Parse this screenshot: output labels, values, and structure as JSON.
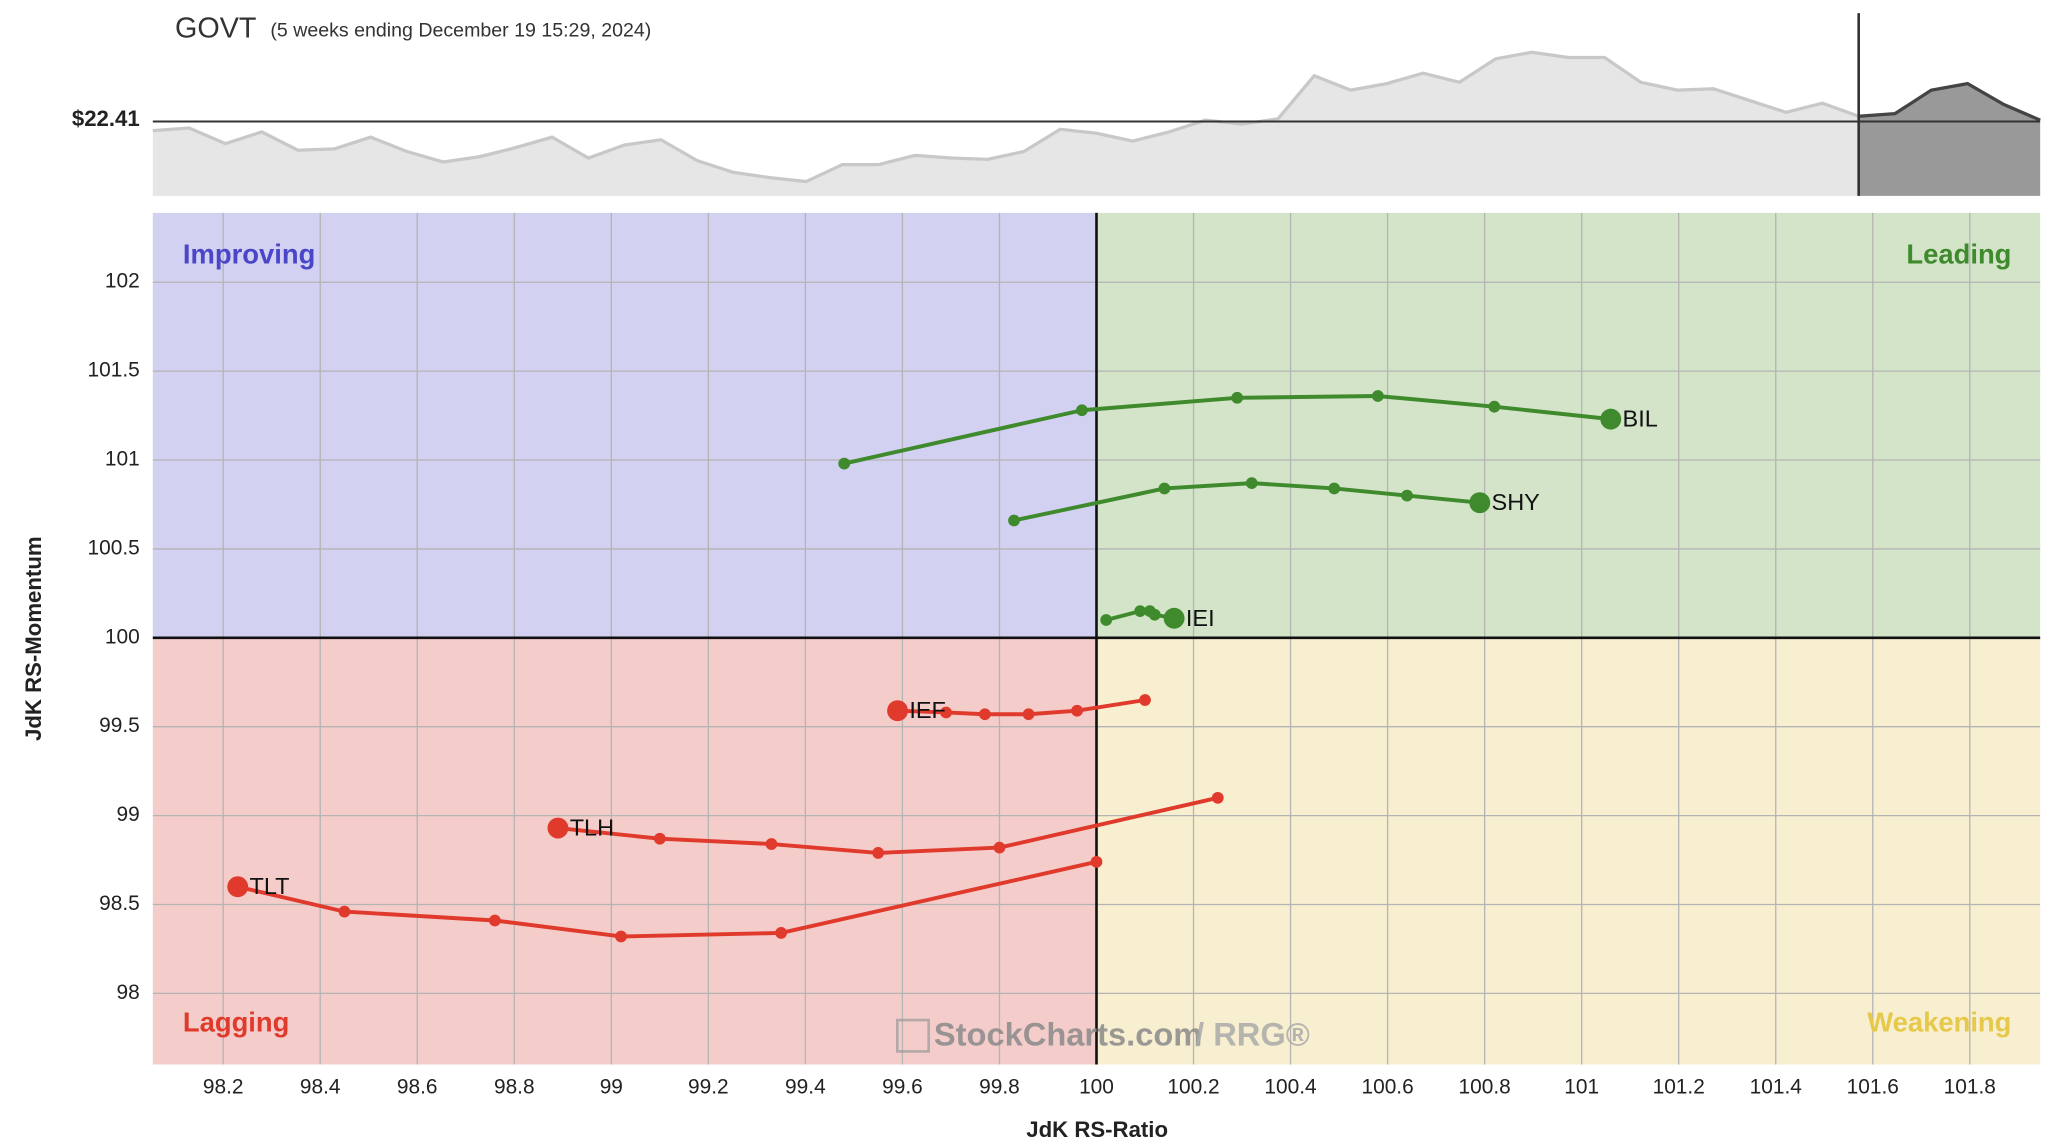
{
  "chart_data": [
    {
      "type": "area",
      "title": "GOVT",
      "subtitle": "(5 weeks ending December 19 15:29, 2024)",
      "reference": {
        "value": 22.41,
        "label": "$22.41"
      },
      "ylim": [
        21.84,
        23.24
      ],
      "series": [
        {
          "color": "#e6e6e6",
          "values": [
            22.34,
            22.36,
            22.24,
            22.33,
            22.19,
            22.2,
            22.29,
            22.18,
            22.1,
            22.14,
            22.21,
            22.29,
            22.13,
            22.23,
            22.27,
            22.11,
            22.02,
            21.98,
            21.95,
            22.08,
            22.08,
            22.15,
            22.13,
            22.12,
            22.18,
            22.35,
            22.32,
            22.26,
            22.33,
            22.42,
            22.39,
            22.43,
            22.76,
            22.65,
            22.7,
            22.78,
            22.71,
            22.89,
            22.94,
            22.9,
            22.9,
            22.71,
            22.65,
            22.66,
            22.57,
            22.48,
            22.55,
            22.45
          ]
        },
        {
          "color": "#999999",
          "values": [
            22.45,
            22.47,
            22.65,
            22.7,
            22.54,
            22.42
          ]
        }
      ]
    },
    {
      "type": "scatter",
      "xlabel": "JdK RS-Ratio",
      "ylabel": "JdK RS-Momentum",
      "xlim": [
        98.055,
        101.945
      ],
      "ylim": [
        97.6,
        102.39
      ],
      "center": [
        100,
        100
      ],
      "grid": true,
      "xticks": [
        98.2,
        98.4,
        98.6,
        98.8,
        99,
        99.2,
        99.4,
        99.6,
        99.8,
        100,
        100.2,
        100.4,
        100.6,
        100.8,
        101,
        101.2,
        101.4,
        101.6,
        101.8
      ],
      "yticks": [
        98,
        98.5,
        99,
        99.5,
        100,
        100.5,
        101,
        101.5,
        102
      ],
      "quadrants": [
        {
          "label": "Improving",
          "color": "#d2d1f2",
          "text_color": "#4a46c8"
        },
        {
          "label": "Leading",
          "color": "#d3e4c9",
          "text_color": "#3f8a2c"
        },
        {
          "label": "Lagging",
          "color": "#f4cdcb",
          "text_color": "#e03a2c"
        },
        {
          "label": "Weakening",
          "color": "#f8efd0",
          "text_color": "#e6c84a"
        }
      ],
      "watermark": "StockCharts.com",
      "watermark_suffix": "/ RRG®",
      "series": [
        {
          "name": "BIL",
          "color": "#3f8a2c",
          "x": [
            99.48,
            99.97,
            100.29,
            100.58,
            100.82,
            101.06
          ],
          "values": [
            100.98,
            101.28,
            101.35,
            101.36,
            101.3,
            101.23
          ]
        },
        {
          "name": "SHY",
          "color": "#3f8a2c",
          "x": [
            99.83,
            100.14,
            100.32,
            100.49,
            100.64,
            100.79
          ],
          "values": [
            100.66,
            100.84,
            100.87,
            100.84,
            100.8,
            100.76
          ]
        },
        {
          "name": "IEI",
          "color": "#3f8a2c",
          "x": [
            100.02,
            100.09,
            100.11,
            100.12,
            100.16
          ],
          "values": [
            100.1,
            100.15,
            100.15,
            100.13,
            100.11
          ]
        },
        {
          "name": "IEF",
          "color": "#e03a2c",
          "x": [
            100.1,
            99.96,
            99.86,
            99.77,
            99.69,
            99.59
          ],
          "values": [
            99.65,
            99.59,
            99.57,
            99.57,
            99.58,
            99.59
          ]
        },
        {
          "name": "TLH",
          "color": "#e03a2c",
          "x": [
            100.25,
            99.8,
            99.55,
            99.33,
            99.1,
            98.89
          ],
          "values": [
            99.1,
            98.82,
            98.79,
            98.84,
            98.87,
            98.93
          ]
        },
        {
          "name": "TLT",
          "color": "#e03a2c",
          "x": [
            100,
            99.35,
            99.02,
            98.76,
            98.45,
            98.23
          ],
          "values": [
            98.74,
            98.34,
            98.32,
            98.41,
            98.46,
            98.6
          ]
        }
      ]
    }
  ]
}
